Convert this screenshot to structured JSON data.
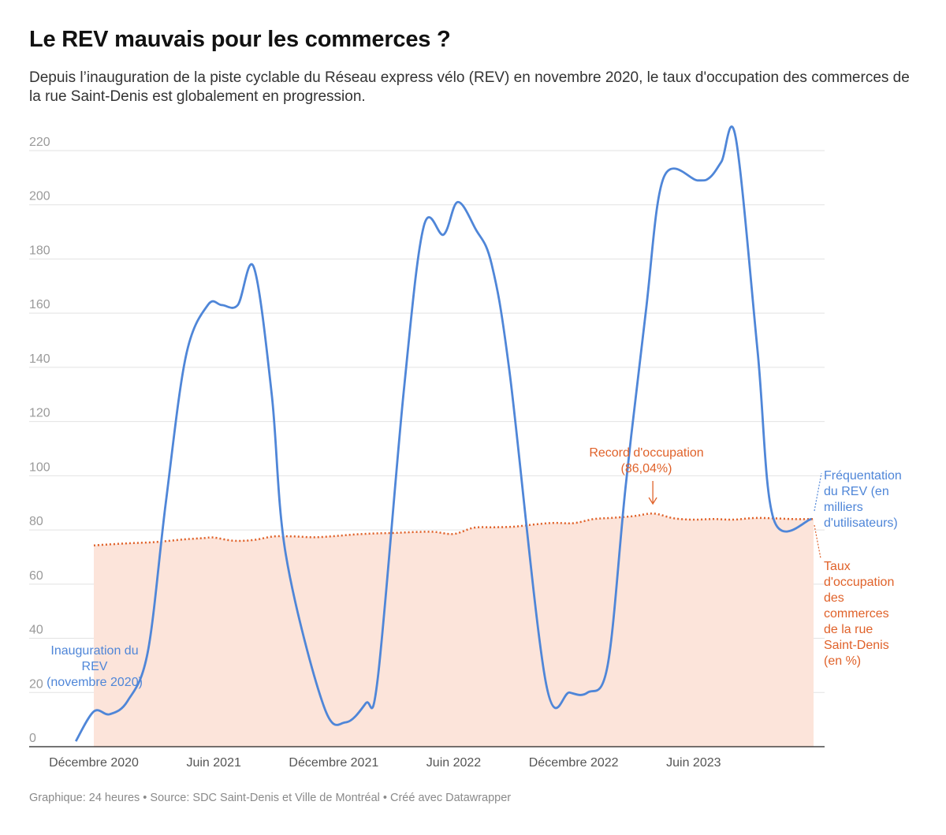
{
  "header": {
    "title": "Le REV mauvais pour les commerces ?",
    "subtitle": "Depuis l’inauguration de la piste cyclable du Réseau express vélo (REV) en novembre 2020, le taux d'occupation des commerces de la rue Saint-Denis est globalement en progression."
  },
  "footer": {
    "credit": "Graphique: 24 heures • Source: SDC Saint-Denis et Ville de Montréal • Créé avec Datawrapper"
  },
  "chart_data": {
    "type": "line",
    "title": "Le REV mauvais pour les commerces ?",
    "xlabel": "",
    "ylabel": "",
    "ylim": [
      0,
      220
    ],
    "yticks": [
      0,
      20,
      40,
      60,
      80,
      100,
      120,
      140,
      160,
      180,
      200,
      220
    ],
    "x_tick_labels": [
      "Décembre 2020",
      "Juin 2021",
      "Décembre 2021",
      "Juin 2022",
      "Décembre 2022",
      "Juin 2023"
    ],
    "x_tick_positions": [
      0,
      6,
      12,
      18,
      24,
      30
    ],
    "x_range": [
      0,
      36
    ],
    "x_unit": "mois depuis décembre 2020",
    "grid": true,
    "colors": {
      "frequentation": "#4f86d8",
      "occupation": "#e0622a",
      "area_fill": "#fce4da"
    },
    "series": [
      {
        "name": "Fréquentation du REV (en milliers d'utilisateurs)",
        "label_lines": [
          "Fréquentation",
          "du REV (en",
          "milliers",
          "d'utilisateurs)"
        ],
        "style": "solid",
        "x": [
          -0.9,
          0,
          0.8,
          1.7,
          2.7,
          3.6,
          4.6,
          5.7,
          6.4,
          7.2,
          8.0,
          8.9,
          9.6,
          11.5,
          12.6,
          13.6,
          14.2,
          15.5,
          16.5,
          17.5,
          18.2,
          19.1,
          19.9,
          20.8,
          22.6,
          23.8,
          24.7,
          25.7,
          26.6,
          27.6,
          28.5,
          30.2,
          30.8,
          31.4,
          32.1,
          33.2,
          34.0,
          35.9
        ],
        "y": [
          2,
          13,
          12,
          17,
          35,
          90,
          144,
          163,
          163,
          163,
          177,
          130,
          71,
          15,
          9,
          16,
          25,
          131,
          192,
          189,
          201,
          191,
          178,
          138,
          24,
          20,
          20,
          30,
          96,
          160,
          210,
          209,
          210,
          216,
          225,
          146,
          84,
          84
        ]
      },
      {
        "name": "Taux d'occupation des commerces de la rue Saint-Denis (en %)",
        "label_lines": [
          "Taux",
          "d'occupation",
          "des",
          "commerces",
          "de la rue",
          "Saint-Denis",
          "(en %)"
        ],
        "style": "dotted",
        "x": [
          0,
          1.5,
          3,
          4.5,
          5.5,
          6,
          7,
          8,
          9,
          10,
          11,
          12,
          13,
          14,
          15,
          16,
          17,
          18,
          19,
          20,
          21,
          22,
          23,
          24,
          25,
          26,
          27,
          28,
          29,
          30,
          31,
          32,
          33,
          34,
          35,
          36
        ],
        "y": [
          74.3,
          75,
          75.5,
          76.5,
          77.0,
          77.2,
          76,
          76.3,
          77.6,
          77.6,
          77.3,
          77.7,
          78.3,
          78.7,
          78.9,
          79.2,
          79.3,
          78.5,
          80.8,
          81,
          81.2,
          82,
          82.6,
          82.5,
          84,
          84.5,
          85.1,
          86.04,
          84.3,
          83.8,
          84,
          83.8,
          84.4,
          84.3,
          84,
          84
        ]
      }
    ],
    "annotations": [
      {
        "text": "Inauguration du REV (novembre 2020)",
        "lines": [
          "Inauguration du",
          "REV",
          "(novembre 2020)"
        ],
        "series": "Fréquentation du REV (en milliers d'utilisateurs)"
      },
      {
        "text": "Record d'occupation (86,04%)",
        "lines": [
          "Record d'occupation",
          "(86,04%)"
        ],
        "x": 28,
        "y": 86.04,
        "series": "Taux d'occupation des commerces de la rue Saint-Denis (en %)"
      }
    ]
  }
}
